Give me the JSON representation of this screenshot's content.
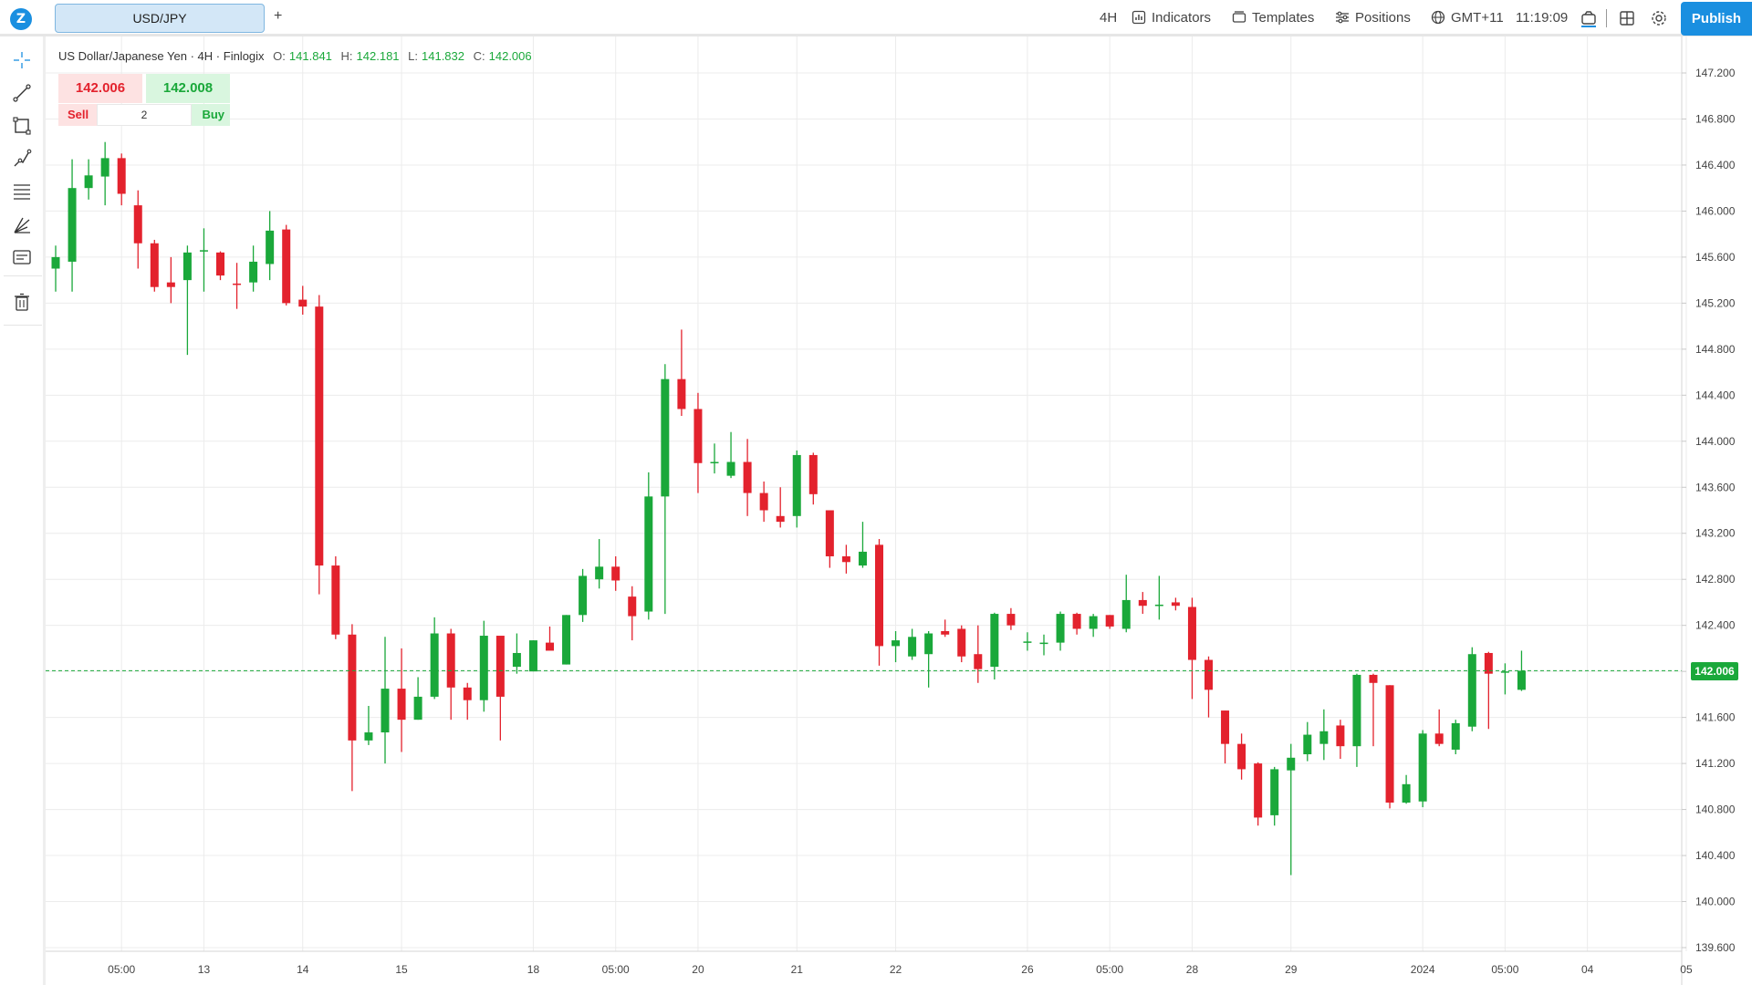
{
  "app": {
    "tab_label": "USD/JPY",
    "add_tab": "+",
    "logo_glyph": "Z"
  },
  "toolbar": {
    "timeframe": "4H",
    "indicators": "Indicators",
    "templates": "Templates",
    "positions": "Positions",
    "timezone": "GMT+11",
    "clock": "11:19:09",
    "publish": "Publish",
    "icons": [
      "chart-icon",
      "templates-icon",
      "positions-icon",
      "globe-icon",
      "snapshot-icon",
      "layout-icon",
      "settings-icon"
    ]
  },
  "sidebar": {
    "tools": [
      "crosshair-icon",
      "trendline-icon",
      "rectangle-icon",
      "path-icon",
      "fibonacci-icon",
      "pitchfork-icon",
      "text-note-icon",
      "trash-icon"
    ]
  },
  "legend": {
    "symbol": "US Dollar/Japanese Yen",
    "timeframe": "4H",
    "source": "Finlogix",
    "sep": "·",
    "o_label": "O:",
    "o": "141.841",
    "h_label": "H:",
    "h": "142.181",
    "l_label": "L:",
    "l": "141.832",
    "c_label": "C:",
    "c": "142.006"
  },
  "trade": {
    "sell_price": "142.006",
    "buy_price": "142.008",
    "sell": "Sell",
    "buy": "Buy",
    "quantity": "2"
  },
  "colors": {
    "up": "#1aa83a",
    "down": "#e3222d",
    "accent": "#1a8fe0",
    "grid": "#ececec"
  },
  "chart_data": {
    "type": "candlestick",
    "symbol": "USD/JPY",
    "interval": "4H",
    "last_price": "142.006",
    "ylim": [
      139.6,
      147.2
    ],
    "grid": true,
    "y_ticks": [
      "147.200",
      "146.800",
      "146.400",
      "146.000",
      "145.600",
      "145.200",
      "144.800",
      "144.400",
      "144.000",
      "143.600",
      "143.200",
      "142.800",
      "142.400",
      "142.000",
      "141.600",
      "141.200",
      "140.800",
      "140.400",
      "140.000",
      "139.600"
    ],
    "x_ticks": [
      {
        "i": 4,
        "label": "05:00"
      },
      {
        "i": 9,
        "label": "13"
      },
      {
        "i": 15,
        "label": "14"
      },
      {
        "i": 21,
        "label": "15"
      },
      {
        "i": 29,
        "label": "18"
      },
      {
        "i": 34,
        "label": "05:00"
      },
      {
        "i": 39,
        "label": "20"
      },
      {
        "i": 45,
        "label": "21"
      },
      {
        "i": 51,
        "label": "22"
      },
      {
        "i": 59,
        "label": "26"
      },
      {
        "i": 64,
        "label": "05:00"
      },
      {
        "i": 69,
        "label": "28"
      },
      {
        "i": 75,
        "label": "29"
      },
      {
        "i": 83,
        "label": "2024"
      },
      {
        "i": 88,
        "label": "05:00"
      },
      {
        "i": 93,
        "label": "04"
      },
      {
        "i": 99,
        "label": "05"
      }
    ],
    "candles": [
      {
        "o": 145.5,
        "h": 145.7,
        "l": 145.3,
        "c": 145.6
      },
      {
        "o": 145.56,
        "h": 146.45,
        "l": 145.3,
        "c": 146.2
      },
      {
        "o": 146.2,
        "h": 146.45,
        "l": 146.1,
        "c": 146.31
      },
      {
        "o": 146.3,
        "h": 146.6,
        "l": 146.05,
        "c": 146.46
      },
      {
        "o": 146.46,
        "h": 146.5,
        "l": 146.05,
        "c": 146.15
      },
      {
        "o": 146.05,
        "h": 146.18,
        "l": 145.5,
        "c": 145.72
      },
      {
        "o": 145.72,
        "h": 145.75,
        "l": 145.3,
        "c": 145.34
      },
      {
        "o": 145.38,
        "h": 145.6,
        "l": 145.2,
        "c": 145.34
      },
      {
        "o": 145.4,
        "h": 145.7,
        "l": 144.75,
        "c": 145.64
      },
      {
        "o": 145.65,
        "h": 145.85,
        "l": 145.3,
        "c": 145.66
      },
      {
        "o": 145.64,
        "h": 145.65,
        "l": 145.4,
        "c": 145.44
      },
      {
        "o": 145.37,
        "h": 145.55,
        "l": 145.15,
        "c": 145.36
      },
      {
        "o": 145.38,
        "h": 145.7,
        "l": 145.3,
        "c": 145.56
      },
      {
        "o": 145.54,
        "h": 146.0,
        "l": 145.4,
        "c": 145.83
      },
      {
        "o": 145.84,
        "h": 145.88,
        "l": 145.18,
        "c": 145.2
      },
      {
        "o": 145.23,
        "h": 145.35,
        "l": 145.1,
        "c": 145.17
      },
      {
        "o": 145.17,
        "h": 145.27,
        "l": 142.67,
        "c": 142.92
      },
      {
        "o": 142.92,
        "h": 143.0,
        "l": 142.28,
        "c": 142.32
      },
      {
        "o": 142.32,
        "h": 142.41,
        "l": 140.96,
        "c": 141.4
      },
      {
        "o": 141.4,
        "h": 141.7,
        "l": 141.36,
        "c": 141.47
      },
      {
        "o": 141.47,
        "h": 142.3,
        "l": 141.2,
        "c": 141.85
      },
      {
        "o": 141.85,
        "h": 142.2,
        "l": 141.3,
        "c": 141.58
      },
      {
        "o": 141.58,
        "h": 141.95,
        "l": 141.58,
        "c": 141.78
      },
      {
        "o": 141.78,
        "h": 142.47,
        "l": 141.76,
        "c": 142.33
      },
      {
        "o": 142.33,
        "h": 142.37,
        "l": 141.58,
        "c": 141.86
      },
      {
        "o": 141.86,
        "h": 141.9,
        "l": 141.58,
        "c": 141.75
      },
      {
        "o": 141.75,
        "h": 142.44,
        "l": 141.65,
        "c": 142.31
      },
      {
        "o": 142.31,
        "h": 142.3,
        "l": 141.4,
        "c": 141.78
      },
      {
        "o": 142.04,
        "h": 142.33,
        "l": 141.98,
        "c": 142.16
      },
      {
        "o": 142.0,
        "h": 142.27,
        "l": 142.0,
        "c": 142.27
      },
      {
        "o": 142.25,
        "h": 142.39,
        "l": 142.2,
        "c": 142.18
      },
      {
        "o": 142.06,
        "h": 142.49,
        "l": 142.06,
        "c": 142.49
      },
      {
        "o": 142.49,
        "h": 142.89,
        "l": 142.43,
        "c": 142.83
      },
      {
        "o": 142.8,
        "h": 143.15,
        "l": 142.72,
        "c": 142.91
      },
      {
        "o": 142.91,
        "h": 143.0,
        "l": 142.7,
        "c": 142.79
      },
      {
        "o": 142.65,
        "h": 142.74,
        "l": 142.27,
        "c": 142.48
      },
      {
        "o": 142.52,
        "h": 143.73,
        "l": 142.45,
        "c": 143.52
      },
      {
        "o": 143.52,
        "h": 144.67,
        "l": 142.5,
        "c": 144.54
      },
      {
        "o": 144.54,
        "h": 144.97,
        "l": 144.22,
        "c": 144.28
      },
      {
        "o": 144.28,
        "h": 144.42,
        "l": 143.55,
        "c": 143.81
      },
      {
        "o": 143.82,
        "h": 143.98,
        "l": 143.72,
        "c": 143.82
      },
      {
        "o": 143.7,
        "h": 144.08,
        "l": 143.68,
        "c": 143.82
      },
      {
        "o": 143.82,
        "h": 144.02,
        "l": 143.35,
        "c": 143.55
      },
      {
        "o": 143.55,
        "h": 143.65,
        "l": 143.3,
        "c": 143.4
      },
      {
        "o": 143.35,
        "h": 143.6,
        "l": 143.25,
        "c": 143.3
      },
      {
        "o": 143.35,
        "h": 143.92,
        "l": 143.25,
        "c": 143.88
      },
      {
        "o": 143.88,
        "h": 143.9,
        "l": 143.45,
        "c": 143.54
      },
      {
        "o": 143.4,
        "h": 143.4,
        "l": 142.9,
        "c": 143.0
      },
      {
        "o": 143.0,
        "h": 143.1,
        "l": 142.85,
        "c": 142.95
      },
      {
        "o": 142.92,
        "h": 143.3,
        "l": 142.9,
        "c": 143.04
      },
      {
        "o": 143.1,
        "h": 143.15,
        "l": 142.05,
        "c": 142.22
      },
      {
        "o": 142.22,
        "h": 142.35,
        "l": 142.08,
        "c": 142.27
      },
      {
        "o": 142.13,
        "h": 142.37,
        "l": 142.1,
        "c": 142.3
      },
      {
        "o": 142.15,
        "h": 142.35,
        "l": 141.86,
        "c": 142.33
      },
      {
        "o": 142.35,
        "h": 142.45,
        "l": 142.3,
        "c": 142.32
      },
      {
        "o": 142.37,
        "h": 142.4,
        "l": 142.08,
        "c": 142.13
      },
      {
        "o": 142.15,
        "h": 142.4,
        "l": 141.9,
        "c": 142.02
      },
      {
        "o": 142.04,
        "h": 142.51,
        "l": 141.93,
        "c": 142.5
      },
      {
        "o": 142.5,
        "h": 142.55,
        "l": 142.36,
        "c": 142.4
      },
      {
        "o": 142.26,
        "h": 142.34,
        "l": 142.18,
        "c": 142.26
      },
      {
        "o": 142.25,
        "h": 142.32,
        "l": 142.14,
        "c": 142.25
      },
      {
        "o": 142.25,
        "h": 142.52,
        "l": 142.18,
        "c": 142.5
      },
      {
        "o": 142.5,
        "h": 142.51,
        "l": 142.32,
        "c": 142.37
      },
      {
        "o": 142.37,
        "h": 142.5,
        "l": 142.3,
        "c": 142.48
      },
      {
        "o": 142.49,
        "h": 142.49,
        "l": 142.37,
        "c": 142.39
      },
      {
        "o": 142.37,
        "h": 142.84,
        "l": 142.34,
        "c": 142.62
      },
      {
        "o": 142.62,
        "h": 142.69,
        "l": 142.5,
        "c": 142.57
      },
      {
        "o": 142.57,
        "h": 142.83,
        "l": 142.45,
        "c": 142.58
      },
      {
        "o": 142.6,
        "h": 142.64,
        "l": 142.53,
        "c": 142.57
      },
      {
        "o": 142.56,
        "h": 142.64,
        "l": 141.76,
        "c": 142.1
      },
      {
        "o": 142.1,
        "h": 142.13,
        "l": 141.6,
        "c": 141.84
      },
      {
        "o": 141.66,
        "h": 141.66,
        "l": 141.2,
        "c": 141.37
      },
      {
        "o": 141.37,
        "h": 141.46,
        "l": 141.06,
        "c": 141.15
      },
      {
        "o": 141.2,
        "h": 141.21,
        "l": 140.66,
        "c": 140.73
      },
      {
        "o": 140.75,
        "h": 141.17,
        "l": 140.66,
        "c": 141.15
      },
      {
        "o": 141.14,
        "h": 141.37,
        "l": 140.23,
        "c": 141.25
      },
      {
        "o": 141.28,
        "h": 141.56,
        "l": 141.22,
        "c": 141.45
      },
      {
        "o": 141.37,
        "h": 141.67,
        "l": 141.23,
        "c": 141.48
      },
      {
        "o": 141.53,
        "h": 141.58,
        "l": 141.24,
        "c": 141.35
      },
      {
        "o": 141.35,
        "h": 141.98,
        "l": 141.17,
        "c": 141.97
      },
      {
        "o": 141.97,
        "h": 141.98,
        "l": 141.35,
        "c": 141.9
      },
      {
        "o": 141.88,
        "h": 141.88,
        "l": 140.81,
        "c": 140.86
      },
      {
        "o": 140.86,
        "h": 141.1,
        "l": 140.85,
        "c": 141.02
      },
      {
        "o": 140.87,
        "h": 141.49,
        "l": 140.82,
        "c": 141.46
      },
      {
        "o": 141.46,
        "h": 141.67,
        "l": 141.35,
        "c": 141.37
      },
      {
        "o": 141.32,
        "h": 141.58,
        "l": 141.28,
        "c": 141.55
      },
      {
        "o": 141.52,
        "h": 142.21,
        "l": 141.48,
        "c": 142.15
      },
      {
        "o": 142.16,
        "h": 142.17,
        "l": 141.5,
        "c": 141.98
      },
      {
        "o": 142.0,
        "h": 142.07,
        "l": 141.8,
        "c": 142.0
      },
      {
        "o": 141.84,
        "h": 142.18,
        "l": 141.83,
        "c": 142.006
      }
    ]
  }
}
